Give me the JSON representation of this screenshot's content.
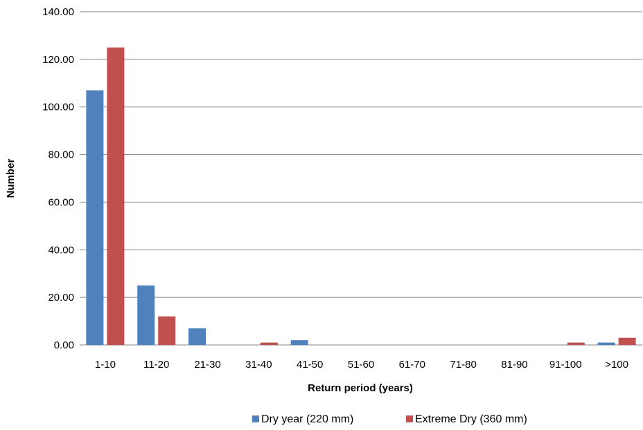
{
  "chart_data": {
    "type": "bar",
    "title": "",
    "xlabel": "Return period (years)",
    "ylabel": "Number",
    "categories": [
      "1-10",
      "11-20",
      "21-30",
      "31-40",
      "41-50",
      "51-60",
      "61-70",
      "71-80",
      "81-90",
      "91-100",
      ">100"
    ],
    "ylim": [
      0,
      140
    ],
    "yticks": [
      "0.00",
      "20.00",
      "40.00",
      "60.00",
      "80.00",
      "100.00",
      "120.00",
      "140.00"
    ],
    "grid": true,
    "legend_position": "bottom",
    "series": [
      {
        "name": "Dry year (220 mm)",
        "color": "#4F81BD",
        "values": [
          107,
          25,
          7,
          0,
          2,
          0,
          0,
          0,
          0,
          0,
          1
        ]
      },
      {
        "name": "Extreme Dry (360 mm)",
        "color": "#C0504D",
        "values": [
          125,
          12,
          0,
          1,
          0,
          0,
          0,
          0,
          0,
          1,
          3
        ]
      }
    ]
  }
}
